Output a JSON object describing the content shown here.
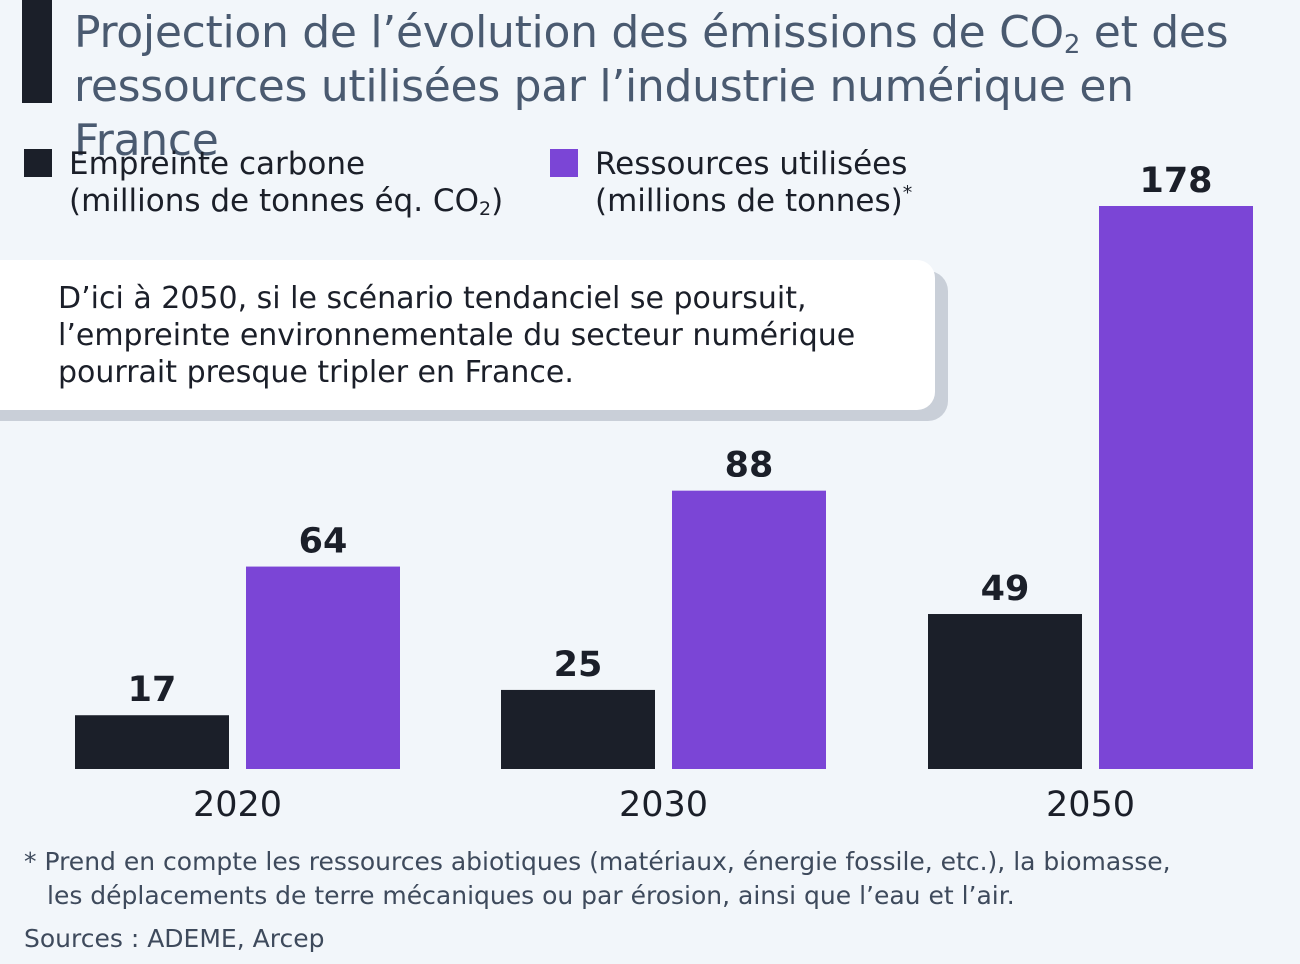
{
  "title": {
    "line1_before_sub": "Projection de l’évolution des émissions de CO",
    "line1_sub": "2",
    "line1_after_sub": " et des",
    "line2": "ressources utilisées par l’industrie numérique en France"
  },
  "legend": {
    "carbon": {
      "line1": "Empreinte carbone",
      "line2_before_sub": "(millions de tonnes éq. CO",
      "line2_sub": "2",
      "line2_after_sub": ")"
    },
    "resources": {
      "line1": "Ressources utilisées",
      "line2": "(millions de tonnes)",
      "line2_sup": "*"
    }
  },
  "callout": {
    "line1": "D’ici à 2050, si le scénario tendanciel se poursuit,",
    "line2": "l’empreinte environnementale du secteur numérique",
    "line3": "pourrait presque tripler en France."
  },
  "footnote": {
    "line1": "* Prend en compte les ressources abiotiques (matériaux, énergie fossile, etc.), la biomasse,",
    "line2": "les déplacements de terre mécaniques ou par érosion, ainsi que l’eau et l’air."
  },
  "sources": "Sources : ADEME, Arcep",
  "colors": {
    "carbon": "#1b1f29",
    "resources": "#7b45d6",
    "text": "#1b1f29"
  },
  "chart_data": {
    "type": "bar",
    "title": "Projection de l’évolution des émissions de CO2 et des ressources utilisées par l’industrie numérique en France",
    "categories": [
      "2020",
      "2030",
      "2050"
    ],
    "series": [
      {
        "name": "Empreinte carbone (millions de tonnes éq. CO2)",
        "key": "carbon",
        "values": [
          17,
          25,
          49
        ]
      },
      {
        "name": "Ressources utilisées (millions de tonnes)*",
        "key": "resources",
        "values": [
          64,
          88,
          178
        ]
      }
    ],
    "xlabel": "",
    "ylabel": "",
    "ylim": [
      0,
      178
    ],
    "grid": false,
    "data_labels": true,
    "legend_position": "top-left"
  }
}
